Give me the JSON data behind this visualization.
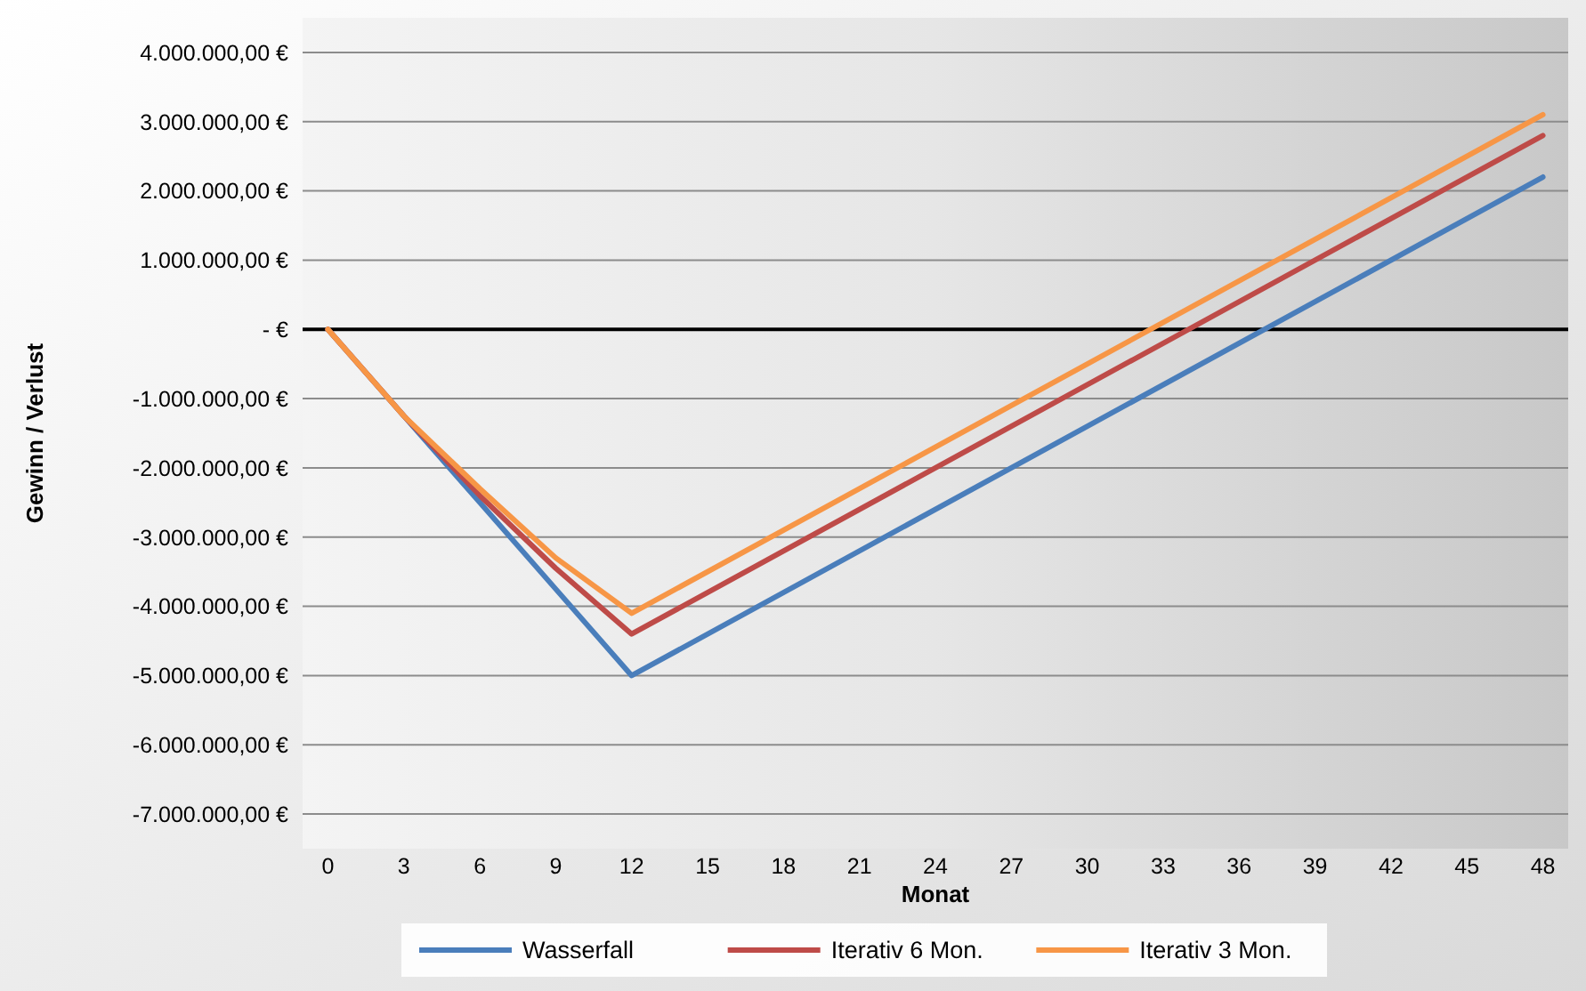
{
  "chart_data": {
    "type": "line",
    "xlabel": "Monat",
    "ylabel": "Gewinn / Verlust",
    "x": [
      0,
      3,
      6,
      9,
      12,
      48
    ],
    "series": [
      {
        "name": "Wasserfall",
        "color": "#4a7ebb",
        "values": [
          0,
          -1250000,
          -2500000,
          -3750000,
          -5000000,
          2200000
        ]
      },
      {
        "name": "Iterativ 6 Mon.",
        "color": "#be4b48",
        "values": [
          0,
          -1250000,
          -2400000,
          -3450000,
          -4400000,
          2800000
        ]
      },
      {
        "name": "Iterativ 3 Mon.",
        "color": "#f79646",
        "values": [
          0,
          -1250000,
          -2300000,
          -3300000,
          -4100000,
          3100000
        ]
      }
    ],
    "xlim": [
      -1,
      49
    ],
    "xticks": [
      0,
      3,
      6,
      9,
      12,
      15,
      18,
      21,
      24,
      27,
      30,
      33,
      36,
      39,
      42,
      45,
      48
    ],
    "ylim": [
      -7500000,
      4500000
    ],
    "yticks": [
      {
        "value": 4000000,
        "label": "4.000.000,00 €"
      },
      {
        "value": 3000000,
        "label": "3.000.000,00 €"
      },
      {
        "value": 2000000,
        "label": "2.000.000,00 €"
      },
      {
        "value": 1000000,
        "label": "1.000.000,00 €"
      },
      {
        "value": 0,
        "label": "-   €"
      },
      {
        "value": -1000000,
        "label": "-1.000.000,00 €"
      },
      {
        "value": -2000000,
        "label": "-2.000.000,00 €"
      },
      {
        "value": -3000000,
        "label": "-3.000.000,00 €"
      },
      {
        "value": -4000000,
        "label": "-4.000.000,00 €"
      },
      {
        "value": -5000000,
        "label": "-5.000.000,00 €"
      },
      {
        "value": -6000000,
        "label": "-6.000.000,00 €"
      },
      {
        "value": -7000000,
        "label": "-7.000.000,00 €"
      }
    ],
    "grid": "y",
    "legend": "bottom",
    "marker": "none",
    "line_style": "solid"
  }
}
